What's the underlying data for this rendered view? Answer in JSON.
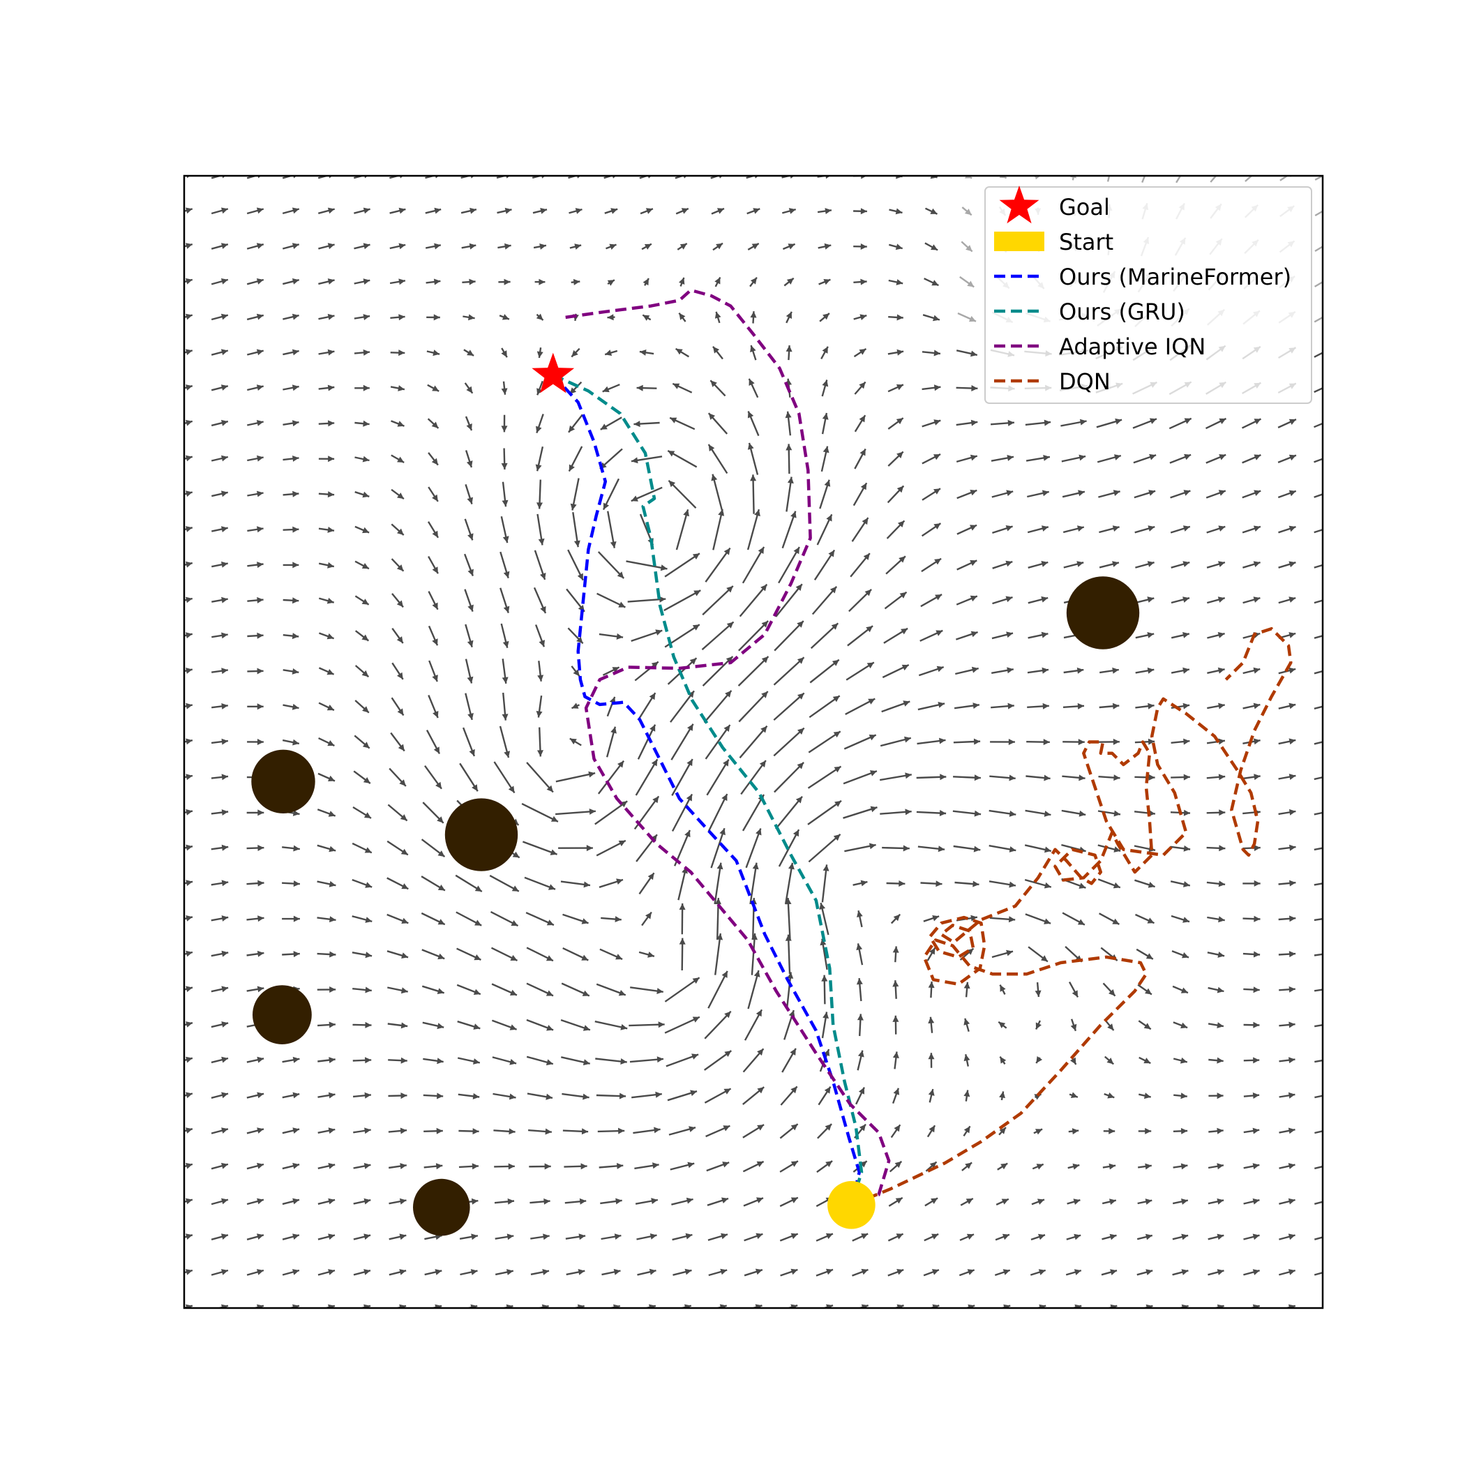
{
  "chart_data": {
    "type": "line",
    "title": "",
    "xlabel": "",
    "ylabel": "",
    "xlim": [
      0,
      100
    ],
    "ylim": [
      0,
      100
    ],
    "grid": false,
    "show_ticks": false,
    "legend": {
      "placement": "top-right",
      "entries": [
        {
          "label": "Goal",
          "kind": "star",
          "color": "#ff0000"
        },
        {
          "label": "Start",
          "kind": "patch",
          "color": "#ffd700"
        },
        {
          "label": "Ours (MarineFormer)",
          "kind": "line",
          "color": "#0000ff"
        },
        {
          "label": "Ours (GRU)",
          "kind": "line",
          "color": "#008b8b"
        },
        {
          "label": "Adaptive IQN",
          "kind": "line",
          "color": "#800080"
        },
        {
          "label": "DQN",
          "kind": "line",
          "color": "#b03a00"
        }
      ]
    },
    "goal": {
      "x": 32.4,
      "y": 82.4,
      "color": "#ff0000"
    },
    "start": {
      "x": 58.6,
      "y": 9.1,
      "r": 2.1,
      "color": "#ffd700"
    },
    "obstacles": [
      {
        "x": 80.7,
        "y": 61.4,
        "r": 3.2
      },
      {
        "x": 8.7,
        "y": 46.5,
        "r": 2.8
      },
      {
        "x": 26.1,
        "y": 41.8,
        "r": 3.2
      },
      {
        "x": 8.6,
        "y": 25.9,
        "r": 2.6
      },
      {
        "x": 22.6,
        "y": 8.9,
        "r": 2.5
      }
    ],
    "obstacle_color": "#331f00",
    "vortices": [
      {
        "x": 42.0,
        "y": 69.0,
        "s": 1.0,
        "k": 2.2
      },
      {
        "x": 34.0,
        "y": 48.0,
        "s": 0.8,
        "k": 2.0
      },
      {
        "x": 43.0,
        "y": 30.0,
        "s": 0.6,
        "k": 2.0
      },
      {
        "x": 57.0,
        "y": 38.0,
        "s": -0.6,
        "k": 1.8
      },
      {
        "x": 78.0,
        "y": 90.0,
        "s": 0.5,
        "k": 1.6
      },
      {
        "x": 73.0,
        "y": 30.0,
        "s": -0.5,
        "k": 1.4
      }
    ],
    "series": [
      {
        "name": "Ours (MarineFormer)",
        "color": "#0000ff",
        "points": [
          [
            32.4,
            82.4
          ],
          [
            34.6,
            80.0
          ],
          [
            36.0,
            76.5
          ],
          [
            37.0,
            73.0
          ],
          [
            36.2,
            70.0
          ],
          [
            35.5,
            67.0
          ],
          [
            35.0,
            62.0
          ],
          [
            34.6,
            58.0
          ],
          [
            34.8,
            55.5
          ],
          [
            35.2,
            54.0
          ],
          [
            36.5,
            53.3
          ],
          [
            38.6,
            53.5
          ],
          [
            40.0,
            52.0
          ],
          [
            41.5,
            49.0
          ],
          [
            43.5,
            45.0
          ],
          [
            46.2,
            42.0
          ],
          [
            48.5,
            39.5
          ],
          [
            51.0,
            33.0
          ],
          [
            53.0,
            29.0
          ],
          [
            55.5,
            24.5
          ],
          [
            57.0,
            20.0
          ],
          [
            58.4,
            15.0
          ],
          [
            59.3,
            12.0
          ],
          [
            58.6,
            9.1
          ]
        ]
      },
      {
        "name": "Ours (GRU)",
        "color": "#008b8b",
        "points": [
          [
            32.4,
            82.4
          ],
          [
            35.5,
            81.0
          ],
          [
            38.3,
            79.0
          ],
          [
            40.5,
            75.5
          ],
          [
            41.3,
            71.5
          ],
          [
            40.3,
            70.8
          ],
          [
            41.0,
            68.0
          ],
          [
            41.8,
            62.0
          ],
          [
            43.0,
            57.5
          ],
          [
            44.6,
            53.7
          ],
          [
            47.3,
            49.5
          ],
          [
            50.5,
            45.5
          ],
          [
            53.3,
            40.0
          ],
          [
            55.5,
            36.0
          ],
          [
            56.7,
            30.0
          ],
          [
            57.0,
            25.0
          ],
          [
            58.0,
            20.0
          ],
          [
            59.0,
            16.0
          ],
          [
            59.5,
            12.0
          ],
          [
            58.6,
            9.1
          ]
        ]
      },
      {
        "name": "Adaptive IQN",
        "color": "#800080",
        "points": [
          [
            33.5,
            87.5
          ],
          [
            37.0,
            88.0
          ],
          [
            41.0,
            88.5
          ],
          [
            43.5,
            89.0
          ],
          [
            44.5,
            89.9
          ],
          [
            46.3,
            89.4
          ],
          [
            48.0,
            88.5
          ],
          [
            50.0,
            86.0
          ],
          [
            52.3,
            83.0
          ],
          [
            54.0,
            79.0
          ],
          [
            54.8,
            74.0
          ],
          [
            55.0,
            68.0
          ],
          [
            53.3,
            64.0
          ],
          [
            51.0,
            59.5
          ],
          [
            48.0,
            57.0
          ],
          [
            43.5,
            56.5
          ],
          [
            39.0,
            56.6
          ],
          [
            36.5,
            55.5
          ],
          [
            35.3,
            53.0
          ],
          [
            36.0,
            48.5
          ],
          [
            38.0,
            45.0
          ],
          [
            41.5,
            41.0
          ],
          [
            44.5,
            38.5
          ],
          [
            47.0,
            35.5
          ],
          [
            49.5,
            32.5
          ],
          [
            52.0,
            28.0
          ],
          [
            55.5,
            22.5
          ],
          [
            58.5,
            18.0
          ],
          [
            61.0,
            15.5
          ],
          [
            61.9,
            13.0
          ],
          [
            61.0,
            10.0
          ],
          [
            58.6,
            9.1
          ]
        ]
      },
      {
        "name": "DQN",
        "color": "#b03a00",
        "points": [
          [
            58.6,
            9.1
          ],
          [
            62.0,
            10.5
          ],
          [
            66.8,
            12.8
          ],
          [
            70.0,
            14.7
          ],
          [
            73.5,
            17.2
          ],
          [
            77.0,
            21.0
          ],
          [
            80.5,
            25.0
          ],
          [
            83.5,
            28.0
          ],
          [
            84.5,
            29.5
          ],
          [
            84.0,
            30.5
          ],
          [
            81.0,
            31.0
          ],
          [
            77.0,
            30.5
          ],
          [
            74.0,
            29.5
          ],
          [
            71.0,
            29.5
          ],
          [
            69.0,
            30.2
          ],
          [
            67.5,
            32.0
          ],
          [
            66.0,
            32.5
          ],
          [
            65.0,
            31.0
          ],
          [
            65.8,
            29.0
          ],
          [
            68.0,
            28.6
          ],
          [
            69.9,
            30.0
          ],
          [
            70.3,
            32.0
          ],
          [
            70.0,
            34.0
          ],
          [
            68.5,
            34.5
          ],
          [
            66.5,
            34.0
          ],
          [
            65.5,
            32.8
          ],
          [
            66.3,
            31.5
          ],
          [
            68.0,
            31.0
          ],
          [
            69.3,
            31.8
          ],
          [
            69.0,
            33.3
          ],
          [
            67.5,
            33.8
          ],
          [
            66.5,
            33.0
          ],
          [
            67.6,
            32.3
          ],
          [
            70.0,
            34.3
          ],
          [
            73.0,
            35.5
          ],
          [
            75.0,
            38.0
          ],
          [
            76.5,
            40.5
          ],
          [
            77.5,
            39.5
          ],
          [
            78.8,
            38.0
          ],
          [
            79.7,
            37.5
          ],
          [
            80.5,
            38.5
          ],
          [
            80.0,
            40.0
          ],
          [
            78.0,
            40.5
          ],
          [
            76.5,
            39.0
          ],
          [
            77.2,
            37.8
          ],
          [
            79.0,
            38.0
          ],
          [
            80.5,
            39.5
          ],
          [
            81.5,
            42.0
          ],
          [
            82.0,
            41.0
          ],
          [
            83.5,
            38.5
          ],
          [
            85.0,
            40.0
          ],
          [
            84.8,
            43.0
          ],
          [
            84.5,
            46.0
          ],
          [
            84.8,
            49.0
          ],
          [
            84.2,
            50.0
          ],
          [
            83.8,
            49.0
          ],
          [
            82.5,
            48.0
          ],
          [
            81.5,
            49.0
          ],
          [
            80.5,
            49.0
          ],
          [
            80.7,
            50.0
          ],
          [
            79.5,
            50.0
          ],
          [
            79.0,
            49.0
          ],
          [
            80.0,
            46.0
          ],
          [
            81.0,
            43.0
          ],
          [
            82.5,
            40.5
          ],
          [
            86.0,
            40.0
          ],
          [
            88.0,
            42.0
          ],
          [
            87.0,
            45.5
          ],
          [
            85.5,
            48.0
          ],
          [
            85.0,
            50.5
          ],
          [
            85.5,
            53.0
          ],
          [
            86.0,
            53.8
          ],
          [
            88.0,
            52.5
          ],
          [
            90.5,
            50.5
          ],
          [
            92.5,
            47.5
          ],
          [
            93.7,
            45.5
          ],
          [
            94.3,
            43.0
          ],
          [
            94.0,
            41.0
          ],
          [
            93.5,
            40.0
          ],
          [
            93.0,
            40.5
          ],
          [
            92.0,
            44.0
          ],
          [
            92.8,
            47.5
          ],
          [
            94.0,
            51.0
          ],
          [
            95.5,
            54.0
          ],
          [
            97.2,
            57.0
          ],
          [
            97.0,
            58.5
          ],
          [
            95.5,
            60.0
          ],
          [
            94.0,
            59.5
          ],
          [
            93.0,
            57.0
          ],
          [
            91.5,
            55.5
          ]
        ]
      }
    ]
  }
}
